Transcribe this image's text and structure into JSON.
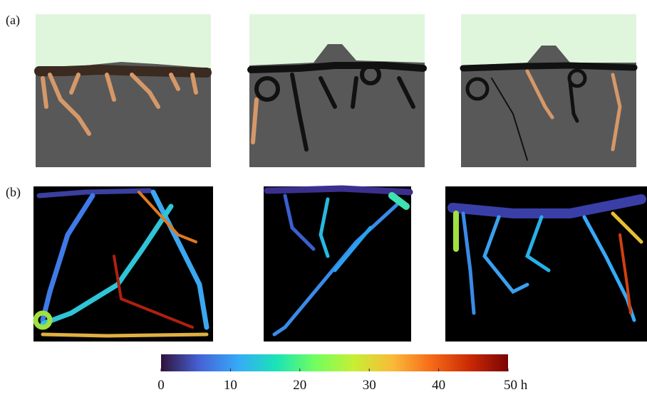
{
  "panels": [
    {
      "label": "(a)"
    },
    {
      "label": "(b)"
    }
  ],
  "colorbar": {
    "lim": [
      0,
      50
    ],
    "ticks": [
      0,
      10,
      20,
      30,
      40,
      {
        "value": 50,
        "label": "50 h"
      }
    ],
    "colors": [
      "#30123b",
      "#4662d7",
      "#36aaf9",
      "#1ae4b6",
      "#72fe5e",
      "#c7ef34",
      "#fabA39",
      "#f66b19",
      "#ca2a04",
      "#7a0403"
    ]
  }
}
